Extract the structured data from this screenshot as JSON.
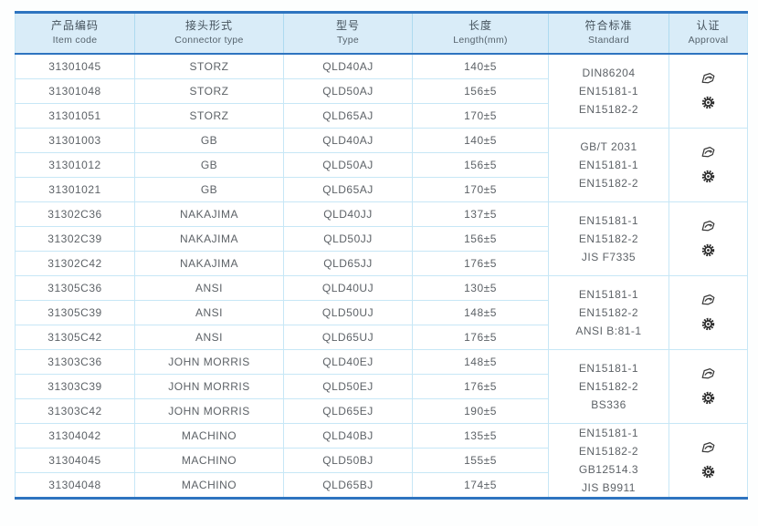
{
  "table": {
    "colors": {
      "accent_border": "#2e74c0",
      "header_bg": "#d9ecf8",
      "grid_line": "#c7e7f6"
    },
    "columns": [
      {
        "zh": "产品编码",
        "en": "Item code"
      },
      {
        "zh": "接头形式",
        "en": "Connector type"
      },
      {
        "zh": "型号",
        "en": "Type"
      },
      {
        "zh": "长度",
        "en": "Length(mm)"
      },
      {
        "zh": "符合标准",
        "en": "Standard"
      },
      {
        "zh": "认证",
        "en": "Approval"
      }
    ],
    "groups": [
      {
        "rows": [
          {
            "item_code": "31301045",
            "connector": "STORZ",
            "type": "QLD40AJ",
            "length": "140±5"
          },
          {
            "item_code": "31301048",
            "connector": "STORZ",
            "type": "QLD50AJ",
            "length": "156±5"
          },
          {
            "item_code": "31301051",
            "connector": "STORZ",
            "type": "QLD65AJ",
            "length": "170±5"
          }
        ],
        "standards": [
          "DIN86204",
          "EN15181-1",
          "EN15182-2"
        ],
        "approval_icons": [
          "certificate-emblem-icon",
          "gear-seal-icon"
        ]
      },
      {
        "rows": [
          {
            "item_code": "31301003",
            "connector": "GB",
            "type": "QLD40AJ",
            "length": "140±5"
          },
          {
            "item_code": "31301012",
            "connector": "GB",
            "type": "QLD50AJ",
            "length": "156±5"
          },
          {
            "item_code": "31301021",
            "connector": "GB",
            "type": "QLD65AJ",
            "length": "170±5"
          }
        ],
        "standards": [
          "GB/T 2031",
          "EN15181-1",
          "EN15182-2"
        ],
        "approval_icons": [
          "certificate-emblem-icon",
          "gear-seal-icon"
        ]
      },
      {
        "rows": [
          {
            "item_code": "31302C36",
            "connector": "NAKAJIMA",
            "type": "QLD40JJ",
            "length": "137±5"
          },
          {
            "item_code": "31302C39",
            "connector": "NAKAJIMA",
            "type": "QLD50JJ",
            "length": "156±5"
          },
          {
            "item_code": "31302C42",
            "connector": "NAKAJIMA",
            "type": "QLD65JJ",
            "length": "176±5"
          }
        ],
        "standards": [
          "EN15181-1",
          "EN15182-2",
          "JIS F7335"
        ],
        "approval_icons": [
          "certificate-emblem-icon",
          "gear-seal-icon"
        ]
      },
      {
        "rows": [
          {
            "item_code": "31305C36",
            "connector": "ANSI",
            "type": "QLD40UJ",
            "length": "130±5"
          },
          {
            "item_code": "31305C39",
            "connector": "ANSI",
            "type": "QLD50UJ",
            "length": "148±5"
          },
          {
            "item_code": "31305C42",
            "connector": "ANSI",
            "type": "QLD65UJ",
            "length": "176±5"
          }
        ],
        "standards": [
          "EN15181-1",
          "EN15182-2",
          "ANSI B:81-1"
        ],
        "approval_icons": [
          "certificate-emblem-icon",
          "gear-seal-icon"
        ]
      },
      {
        "rows": [
          {
            "item_code": "31303C36",
            "connector": "JOHN MORRIS",
            "type": "QLD40EJ",
            "length": "148±5"
          },
          {
            "item_code": "31303C39",
            "connector": "JOHN MORRIS",
            "type": "QLD50EJ",
            "length": "176±5"
          },
          {
            "item_code": "31303C42",
            "connector": "JOHN MORRIS",
            "type": "QLD65EJ",
            "length": "190±5"
          }
        ],
        "standards": [
          "EN15181-1",
          "EN15182-2",
          "BS336"
        ],
        "approval_icons": [
          "certificate-emblem-icon",
          "gear-seal-icon"
        ]
      },
      {
        "rows": [
          {
            "item_code": "31304042",
            "connector": "MACHINO",
            "type": "QLD40BJ",
            "length": "135±5"
          },
          {
            "item_code": "31304045",
            "connector": "MACHINO",
            "type": "QLD50BJ",
            "length": "155±5"
          },
          {
            "item_code": "31304048",
            "connector": "MACHINO",
            "type": "QLD65BJ",
            "length": "174±5"
          }
        ],
        "standards": [
          "EN15181-1",
          "EN15182-2",
          "GB12514.3",
          "JIS B9911"
        ],
        "approval_icons": [
          "certificate-emblem-icon",
          "gear-seal-icon"
        ]
      }
    ]
  }
}
